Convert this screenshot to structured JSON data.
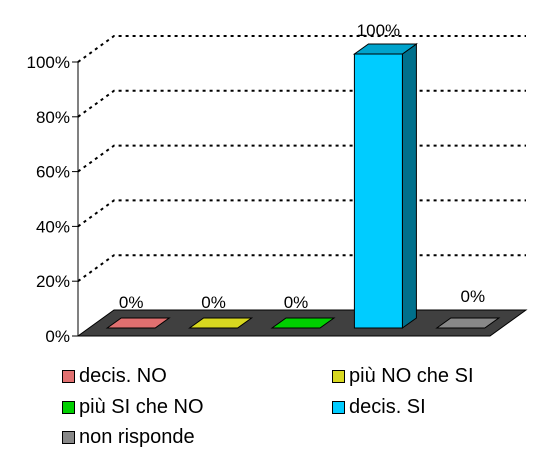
{
  "chart_data": {
    "type": "bar",
    "categories": [
      "decis. NO",
      "più NO che SI",
      "più SI che NO",
      "decis. SI",
      "non risponde"
    ],
    "values": [
      0,
      0,
      0,
      100,
      0
    ],
    "data_labels": [
      "0%",
      "0%",
      "0%",
      "100%",
      "0%"
    ],
    "ylim": [
      0,
      100
    ],
    "yticks": [
      "0%",
      "20%",
      "40%",
      "60%",
      "80%",
      "100%"
    ],
    "grid": true,
    "legend_position": "bottom",
    "colors": [
      "#e07070",
      "#d8d820",
      "#00d000",
      "#00ccff",
      "#888888"
    ]
  },
  "legend": {
    "items": [
      {
        "label": "decis. NO",
        "color": "#e07070"
      },
      {
        "label": "più NO che SI",
        "color": "#d8d820"
      },
      {
        "label": "più SI che NO",
        "color": "#00d000"
      },
      {
        "label": "decis. SI",
        "color": "#00ccff"
      },
      {
        "label": "non risponde",
        "color": "#888888"
      }
    ]
  }
}
